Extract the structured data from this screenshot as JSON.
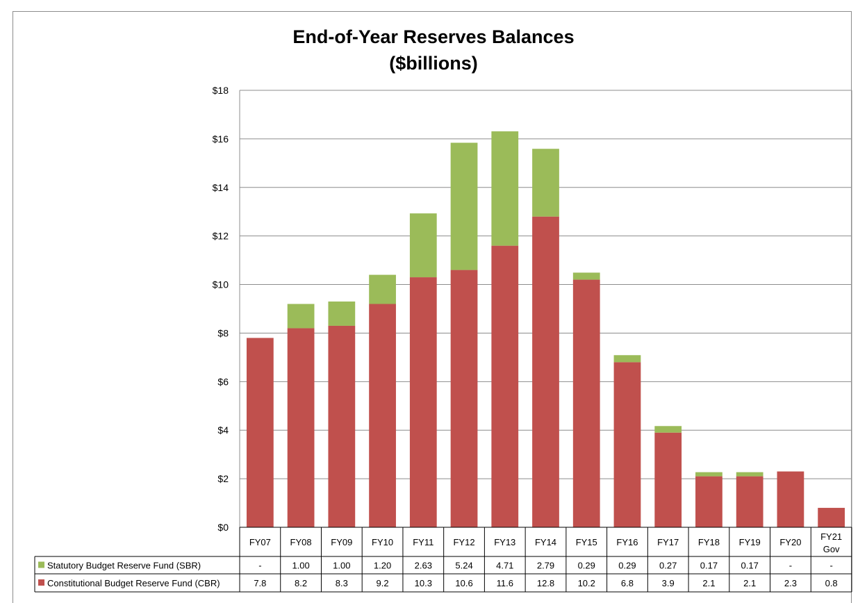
{
  "chart_data": {
    "type": "bar",
    "stacked": true,
    "title_line1": "End-of-Year Reserves Balances",
    "title_line2": "($billions)",
    "categories": [
      [
        "FY07"
      ],
      [
        "FY08"
      ],
      [
        "FY09"
      ],
      [
        "FY10"
      ],
      [
        "FY11"
      ],
      [
        "FY12"
      ],
      [
        "FY13"
      ],
      [
        "FY14"
      ],
      [
        "FY15"
      ],
      [
        "FY16"
      ],
      [
        "FY17"
      ],
      [
        "FY18"
      ],
      [
        "FY19"
      ],
      [
        "FY20"
      ],
      [
        "FY21",
        "Gov"
      ]
    ],
    "ylim": [
      0,
      18
    ],
    "yticks": [
      0,
      2,
      4,
      6,
      8,
      10,
      12,
      14,
      16,
      18
    ],
    "ytick_labels": [
      "$0",
      "$2",
      "$4",
      "$6",
      "$8",
      "$10",
      "$12",
      "$14",
      "$16",
      "$18"
    ],
    "grid": true,
    "legend": "data-table",
    "series": [
      {
        "name": "Statutory Budget Reserve Fund (SBR)",
        "color": "#9bbb59",
        "values": [
          0,
          1.0,
          1.0,
          1.2,
          2.63,
          5.24,
          4.71,
          2.79,
          0.29,
          0.29,
          0.27,
          0.17,
          0.17,
          0,
          0
        ],
        "labels": [
          "-",
          "1.00",
          "1.00",
          "1.20",
          "2.63",
          "5.24",
          "4.71",
          "2.79",
          "0.29",
          "0.29",
          "0.27",
          "0.17",
          "0.17",
          "-",
          "-"
        ]
      },
      {
        "name": "Constitutional Budget Reserve Fund (CBR)",
        "color": "#c0504d",
        "values": [
          7.8,
          8.2,
          8.3,
          9.2,
          10.3,
          10.6,
          11.6,
          12.8,
          10.2,
          6.8,
          3.9,
          2.1,
          2.1,
          2.3,
          0.8
        ],
        "labels": [
          "7.8",
          "8.2",
          "8.3",
          "9.2",
          "10.3",
          "10.6",
          "11.6",
          "12.8",
          "10.2",
          "6.8",
          "3.9",
          "2.1",
          "2.1",
          "2.3",
          "0.8"
        ]
      }
    ]
  }
}
